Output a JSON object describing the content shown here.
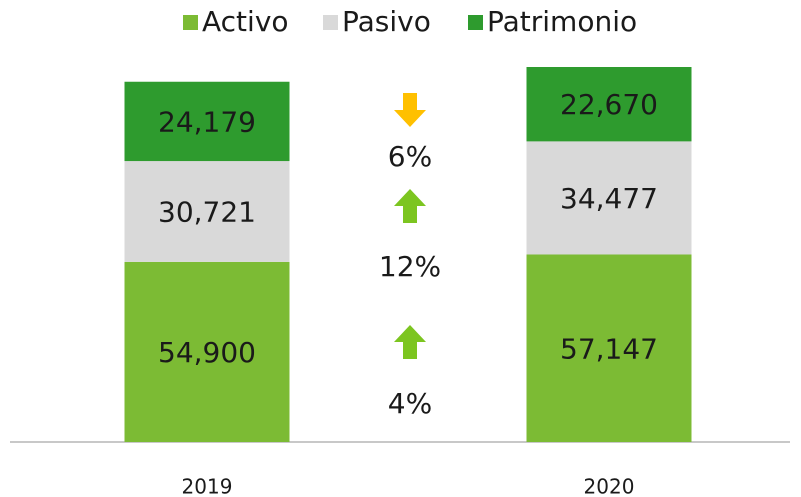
{
  "chart_data": {
    "type": "stacked_bar",
    "categories": [
      "2019",
      "2020"
    ],
    "series": [
      {
        "name": "Activo",
        "color": "#7cbb34",
        "values": [
          54900,
          57147
        ],
        "value_labels": [
          "54,900",
          "57,147"
        ]
      },
      {
        "name": "Pasivo",
        "color": "#d9d9d9",
        "values": [
          30721,
          34477
        ],
        "value_labels": [
          "30,721",
          "34,477"
        ]
      },
      {
        "name": "Patrimonio",
        "color": "#2e9b2e",
        "values": [
          24179,
          22670
        ],
        "value_labels": [
          "24,179",
          "22,670"
        ]
      }
    ],
    "annotations": [
      {
        "text": "6%",
        "direction": "down",
        "color": "#ffc000"
      },
      {
        "text": "12%",
        "direction": "up",
        "color": "#7cc520"
      },
      {
        "text": "4%",
        "direction": "up",
        "color": "#7cc520"
      }
    ],
    "legend": "top"
  }
}
